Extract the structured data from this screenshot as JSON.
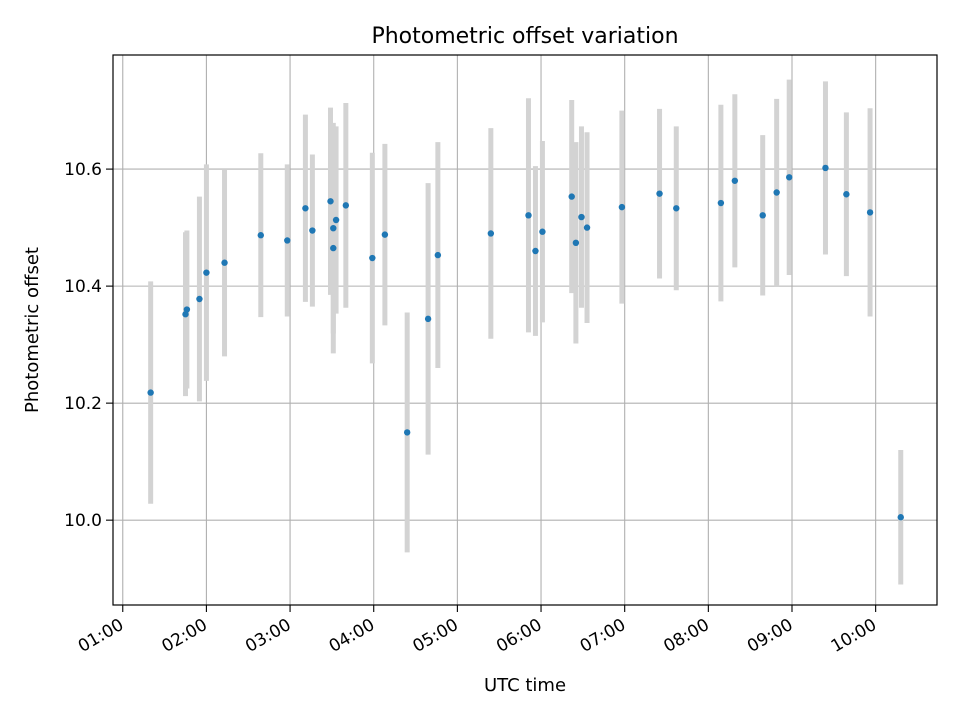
{
  "chart_data": {
    "type": "scatter",
    "title": "Photometric offset variation",
    "xlabel": "UTC time",
    "ylabel": "Photometric offset",
    "x_unit": "time of day (HH:MM)",
    "xlim": [
      "00:53",
      "10:44"
    ],
    "ylim": [
      9.855,
      10.795
    ],
    "x_ticks": [
      "01:00",
      "02:00",
      "03:00",
      "04:00",
      "05:00",
      "06:00",
      "07:00",
      "08:00",
      "09:00",
      "10:00"
    ],
    "y_ticks": [
      10.0,
      10.2,
      10.4,
      10.6
    ],
    "y_tick_labels": [
      "10.0",
      "10.2",
      "10.4",
      "10.6"
    ],
    "grid": true,
    "legend": "none",
    "point_color": "#1f77b4",
    "errorbar_color": "#d3d3d3",
    "points": [
      {
        "t": "01:20",
        "y": 10.218,
        "err": 0.19
      },
      {
        "t": "01:45",
        "y": 10.352,
        "err": 0.14
      },
      {
        "t": "01:46",
        "y": 10.36,
        "err": 0.135
      },
      {
        "t": "01:55",
        "y": 10.378,
        "err": 0.175
      },
      {
        "t": "02:00",
        "y": 10.423,
        "err": 0.185
      },
      {
        "t": "02:13",
        "y": 10.44,
        "err": 0.16
      },
      {
        "t": "02:39",
        "y": 10.487,
        "err": 0.14
      },
      {
        "t": "02:58",
        "y": 10.478,
        "err": 0.13
      },
      {
        "t": "03:11",
        "y": 10.533,
        "err": 0.16
      },
      {
        "t": "03:16",
        "y": 10.495,
        "err": 0.13
      },
      {
        "t": "03:29",
        "y": 10.545,
        "err": 0.16
      },
      {
        "t": "03:31",
        "y": 10.465,
        "err": 0.18
      },
      {
        "t": "03:31",
        "y": 10.499,
        "err": 0.18
      },
      {
        "t": "03:33",
        "y": 10.513,
        "err": 0.16
      },
      {
        "t": "03:40",
        "y": 10.538,
        "err": 0.175
      },
      {
        "t": "03:59",
        "y": 10.448,
        "err": 0.18
      },
      {
        "t": "04:08",
        "y": 10.488,
        "err": 0.155
      },
      {
        "t": "04:24",
        "y": 10.15,
        "err": 0.205
      },
      {
        "t": "04:39",
        "y": 10.344,
        "err": 0.232
      },
      {
        "t": "04:46",
        "y": 10.453,
        "err": 0.193
      },
      {
        "t": "05:24",
        "y": 10.49,
        "err": 0.18
      },
      {
        "t": "05:51",
        "y": 10.521,
        "err": 0.2
      },
      {
        "t": "05:56",
        "y": 10.46,
        "err": 0.145
      },
      {
        "t": "06:01",
        "y": 10.493,
        "err": 0.155
      },
      {
        "t": "06:22",
        "y": 10.553,
        "err": 0.165
      },
      {
        "t": "06:25",
        "y": 10.474,
        "err": 0.172
      },
      {
        "t": "06:29",
        "y": 10.518,
        "err": 0.155
      },
      {
        "t": "06:33",
        "y": 10.5,
        "err": 0.163
      },
      {
        "t": "06:58",
        "y": 10.535,
        "err": 0.165
      },
      {
        "t": "07:25",
        "y": 10.558,
        "err": 0.145
      },
      {
        "t": "07:37",
        "y": 10.533,
        "err": 0.14
      },
      {
        "t": "08:09",
        "y": 10.542,
        "err": 0.168
      },
      {
        "t": "08:19",
        "y": 10.58,
        "err": 0.148
      },
      {
        "t": "08:39",
        "y": 10.521,
        "err": 0.137
      },
      {
        "t": "08:49",
        "y": 10.56,
        "err": 0.16
      },
      {
        "t": "08:58",
        "y": 10.586,
        "err": 0.167
      },
      {
        "t": "09:24",
        "y": 10.602,
        "err": 0.148
      },
      {
        "t": "09:39",
        "y": 10.557,
        "err": 0.14
      },
      {
        "t": "09:56",
        "y": 10.526,
        "err": 0.178
      },
      {
        "t": "10:18",
        "y": 10.005,
        "err": 0.115
      }
    ]
  }
}
